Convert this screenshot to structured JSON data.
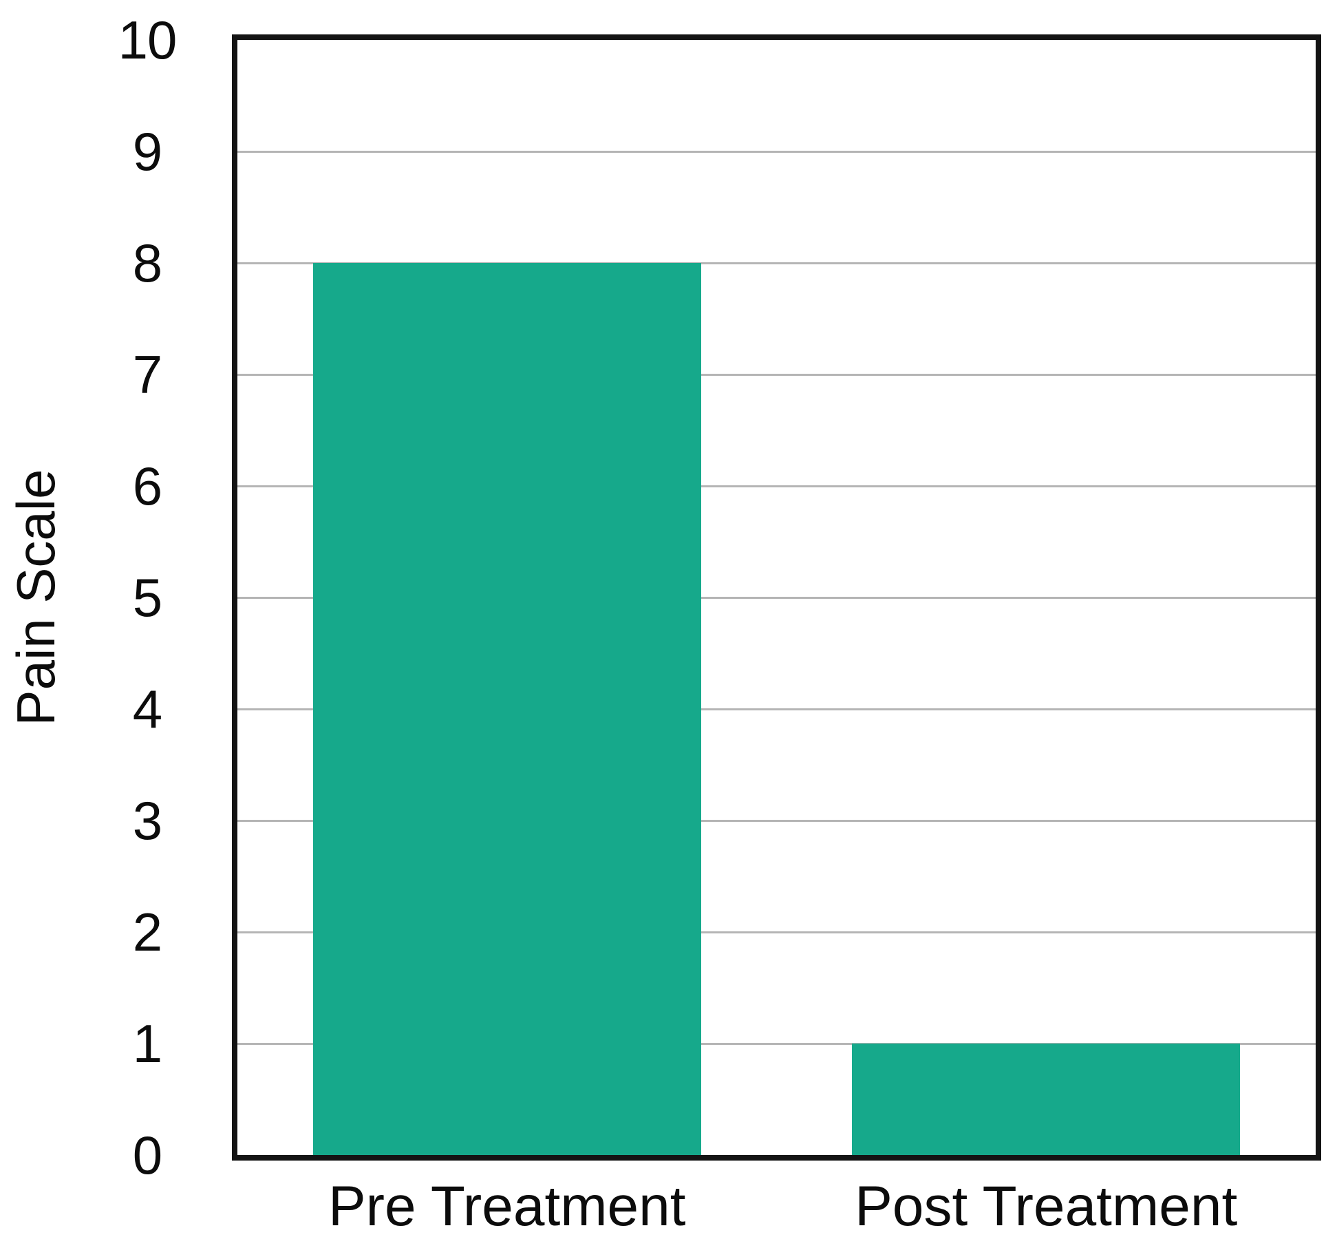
{
  "chart_data": {
    "type": "bar",
    "categories": [
      "Pre Treatment",
      "Post Treatment"
    ],
    "values": [
      8,
      1
    ],
    "title": "",
    "xlabel": "",
    "ylabel": "Pain Scale",
    "ylim": [
      0,
      10
    ],
    "ytick_step": 1,
    "ytick_labels": [
      "0",
      "1",
      "2",
      "3",
      "4",
      "5",
      "6",
      "7",
      "8",
      "9",
      "10"
    ],
    "grid": true,
    "legend": "none",
    "bar_color": "#16A98B",
    "gridline_color": "#b5b5b5",
    "frame_color": "#141414",
    "text_color": "#0c0c0c",
    "background_color": "#ffffff"
  }
}
